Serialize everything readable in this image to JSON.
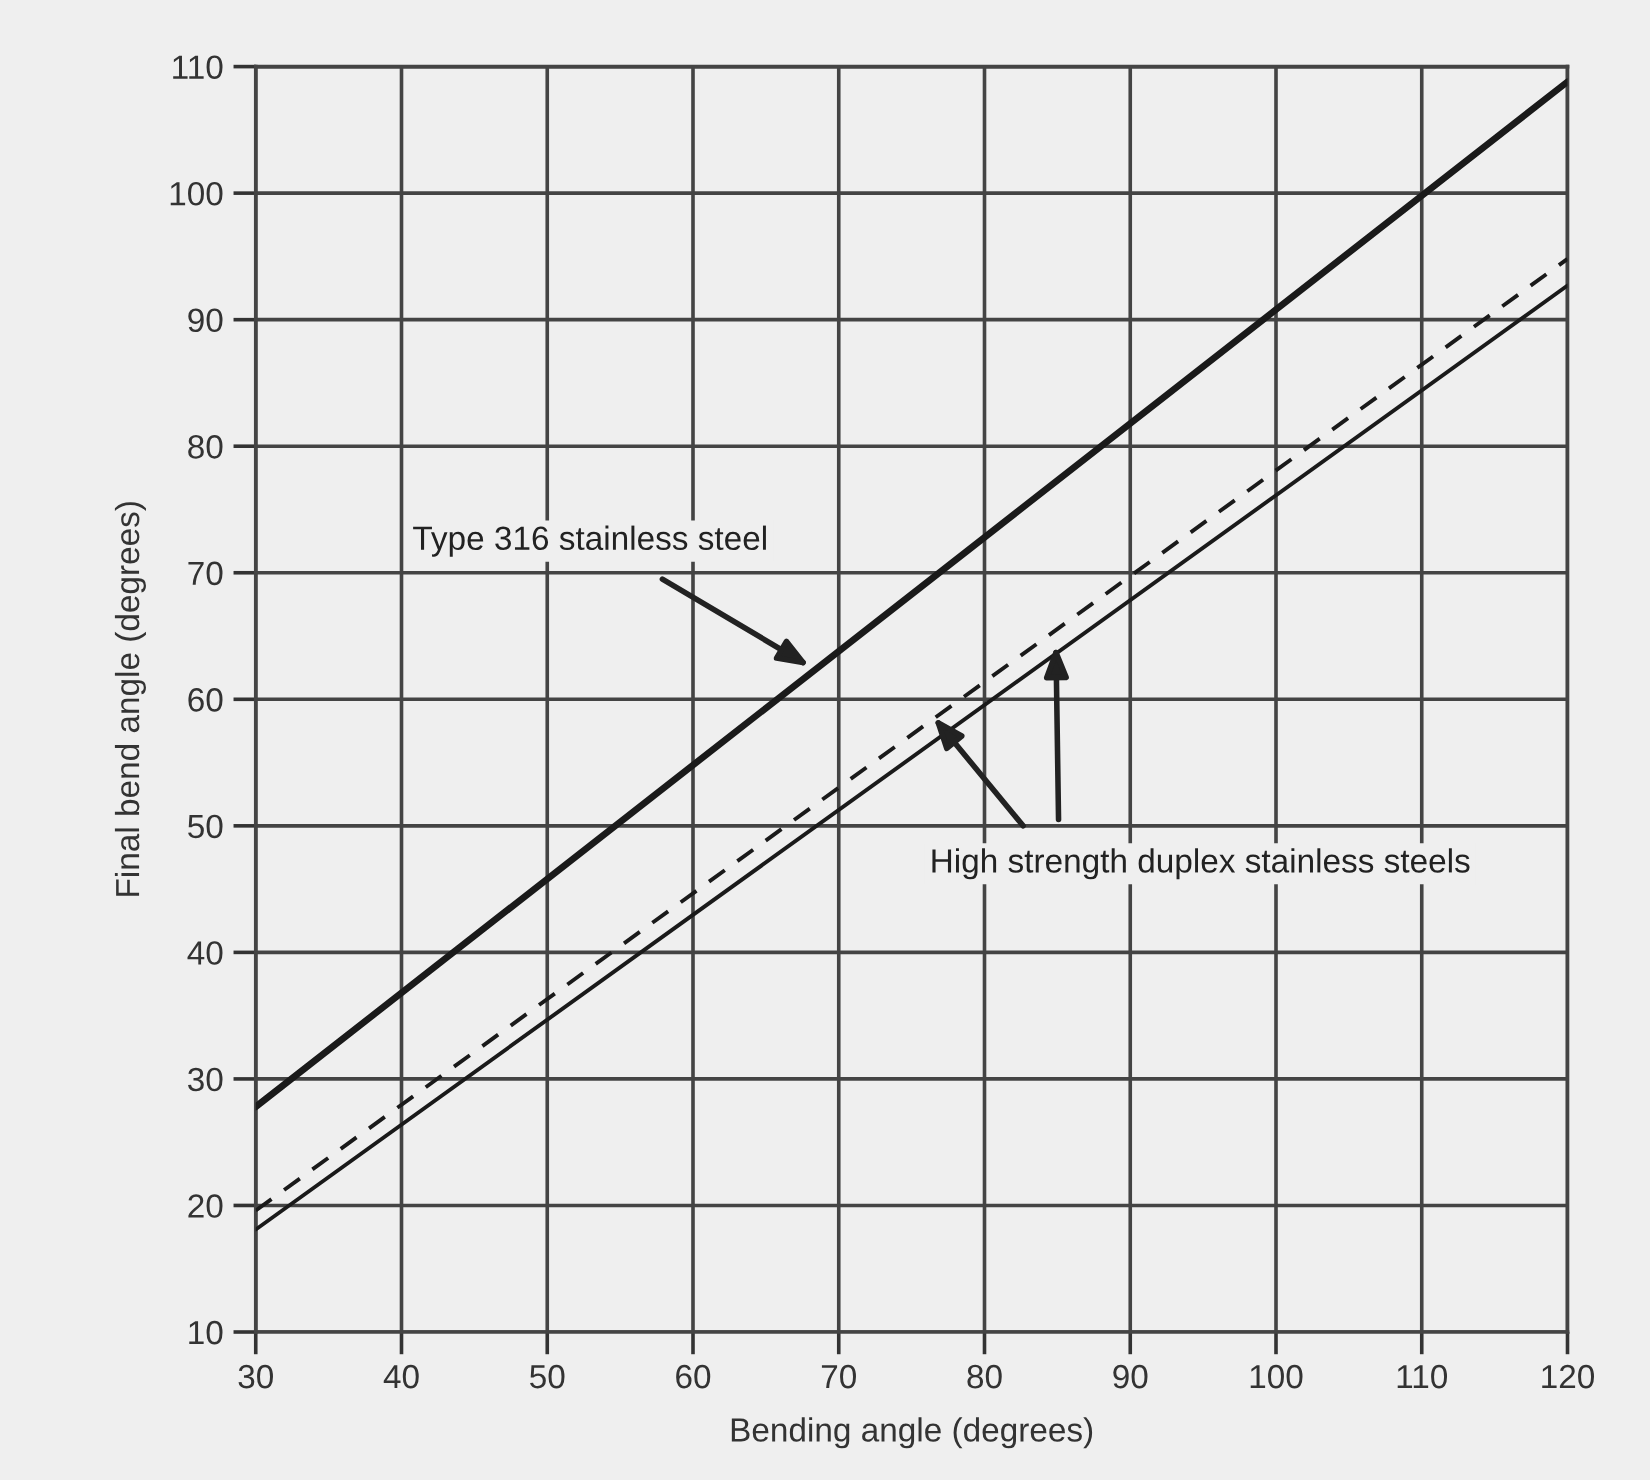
{
  "chart_data": {
    "type": "line",
    "xlabel": "Bending angle (degrees)",
    "ylabel": "Final bend angle (degrees)",
    "x": [
      30,
      120
    ],
    "series": [
      {
        "color": "#1a1a1a",
        "values": [
          27.8,
          108.8
        ],
        "line_style": "solid"
      },
      {
        "color": "#1a1a1a",
        "values": [
          19.6,
          94.8
        ],
        "line_style": "dashed"
      },
      {
        "color": "#1a1a1a",
        "values": [
          18.1,
          92.7
        ],
        "line_style": "solid"
      }
    ],
    "xlim": [
      30,
      120
    ],
    "ylim": [
      10,
      110
    ],
    "xticks": [
      30,
      40,
      50,
      60,
      70,
      80,
      90,
      100,
      110,
      120
    ],
    "yticks": [
      10,
      20,
      30,
      40,
      50,
      60,
      70,
      80,
      90,
      100,
      110
    ],
    "grid": true,
    "marker": "none",
    "annotations": [
      {
        "text": "Type 316 stainless steel",
        "x": 68,
        "y": 62.6
      },
      {
        "text": "High strength duplex stainless steels",
        "x": 76.5,
        "y": 58.6
      }
    ]
  }
}
